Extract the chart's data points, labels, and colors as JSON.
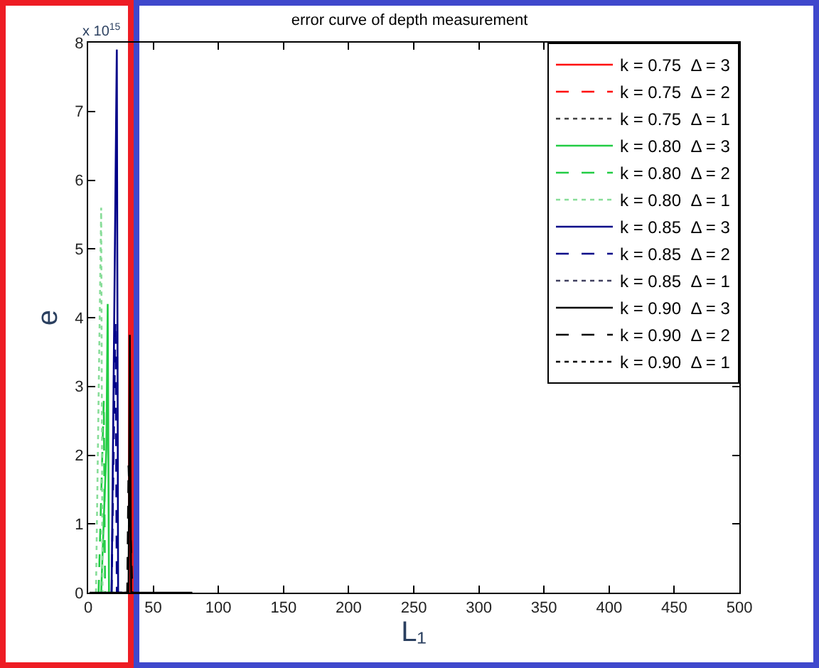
{
  "chart_data": {
    "type": "line",
    "title": "error curve of depth measurement",
    "xlabel": "L₁",
    "ylabel": "e",
    "annotations": [
      "x 10$^{15}$"
    ],
    "xlim": [
      0,
      500
    ],
    "xticks": [
      0,
      50,
      100,
      150,
      200,
      250,
      300,
      350,
      400,
      450,
      500
    ],
    "ylim": [
      0,
      8
    ],
    "yticks": [
      0,
      1,
      2,
      3,
      4,
      5,
      6,
      7,
      8
    ],
    "grid": false,
    "legend": "top right",
    "marker": "none",
    "series": [
      {
        "name": "k = 0.75  Δ = 3",
        "color": "#ff0000",
        "line_style": "solid"
      },
      {
        "name": "k = 0.75  Δ = 2",
        "color": "#ff0000",
        "line_style": "dashed"
      },
      {
        "name": "k = 0.75  Δ = 1",
        "color": "#404040",
        "line_style": "dotted"
      },
      {
        "name": "k = 0.80  Δ = 3",
        "color": "#22cc44",
        "line_style": "solid",
        "x": [
          10,
          14,
          15,
          16,
          20
        ],
        "values": [
          0,
          2.1,
          4.2,
          0,
          0
        ]
      },
      {
        "name": "k = 0.80  Δ = 2",
        "color": "#22cc44",
        "line_style": "dashed",
        "x": [
          8,
          12,
          13,
          16
        ],
        "values": [
          0,
          2.8,
          0,
          0
        ]
      },
      {
        "name": "k = 0.80  Δ = 1",
        "color": "#88dd99",
        "line_style": "dotted",
        "x": [
          6,
          10,
          11,
          14
        ],
        "values": [
          0,
          5.6,
          0,
          0
        ]
      },
      {
        "name": "k = 0.85  Δ = 3",
        "color": "#000088",
        "line_style": "solid",
        "x": [
          18,
          22,
          23,
          26
        ],
        "values": [
          0,
          7.9,
          0,
          0
        ]
      },
      {
        "name": "k = 0.85  Δ = 2",
        "color": "#000088",
        "line_style": "dashed",
        "x": [
          18,
          21,
          22,
          26
        ],
        "values": [
          0,
          3.95,
          0,
          0
        ]
      },
      {
        "name": "k = 0.85  Δ = 1",
        "color": "#404060",
        "line_style": "dotted"
      },
      {
        "name": "k = 0.90  Δ = 3",
        "color": "#000000",
        "line_style": "solid",
        "x": [
          1,
          31,
          32,
          33,
          80
        ],
        "values": [
          0,
          0,
          3.75,
          0,
          0
        ]
      },
      {
        "name": "k = 0.90  Δ = 2",
        "color": "#000000",
        "line_style": "dashed",
        "x": [
          28,
          30,
          31,
          34
        ],
        "values": [
          0,
          0,
          1.85,
          0
        ]
      },
      {
        "name": "k = 0.90  Δ = 1",
        "color": "#000000",
        "line_style": "dotted"
      }
    ]
  }
}
